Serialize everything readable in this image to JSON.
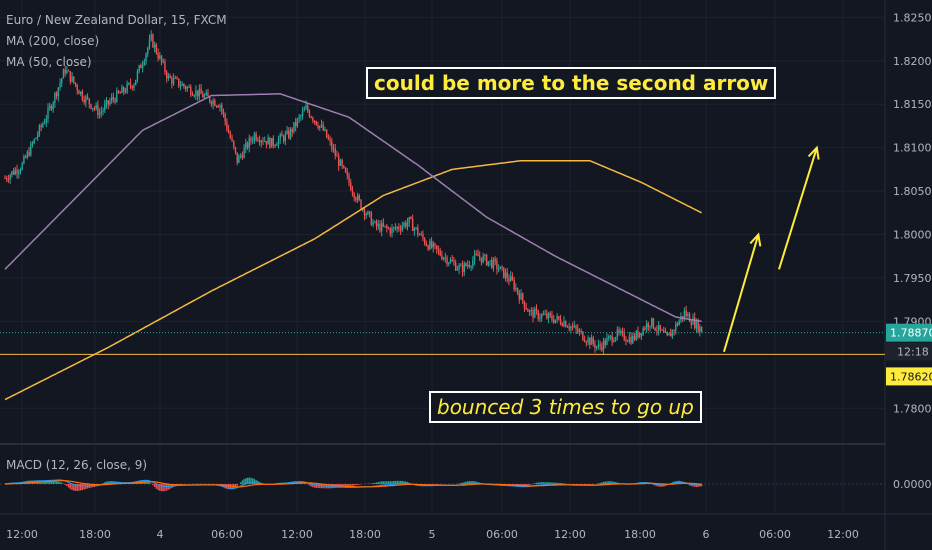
{
  "legend": {
    "symbol": "Euro / New Zealand Dollar, 15, FXCM",
    "ma200": "MA (200, close)",
    "ma50": "MA (50, close)",
    "macd": "MACD (12, 26, close, 9)"
  },
  "annotations": {
    "top": "could be more to the second arrow",
    "bottom": "bounced 3 times to go up"
  },
  "colors": {
    "background": "#131722",
    "grid": "#1e222d",
    "up": "#26a69a",
    "down": "#ef5350",
    "ma200": "#f5b942",
    "ma50": "#9c7fb0",
    "support": "#f5b942",
    "arrow": "#ffeb3b",
    "text": "#b2b5be",
    "current_price_label": "#26a69a",
    "support_label": "#ffeb3b",
    "macd_line": "#2196f3",
    "signal_line": "#ff6d00"
  },
  "chart_data": {
    "type": "candlestick",
    "price_axis": {
      "ticks": [
        "1.82500",
        "1.82000",
        "1.81500",
        "1.81000",
        "1.80500",
        "1.80000",
        "1.79500",
        "1.79000",
        "1.78000"
      ],
      "ylim": [
        1.776,
        1.827
      ]
    },
    "time_axis": {
      "ticks": [
        "12:00",
        "18:00",
        "4",
        "06:00",
        "12:00",
        "18:00",
        "5",
        "06:00",
        "12:00",
        "18:00",
        "6",
        "06:00",
        "12:00"
      ]
    },
    "current_price": {
      "value": "1.78870",
      "countdown": "12:18"
    },
    "support_level": {
      "value": "1.78620"
    },
    "macd_axis": {
      "ticks": [
        "0.00000"
      ]
    },
    "price_path_anchors": [
      [
        0,
        1.8065
      ],
      [
        10,
        1.808
      ],
      [
        25,
        1.814
      ],
      [
        35,
        1.819
      ],
      [
        45,
        1.816
      ],
      [
        55,
        1.814
      ],
      [
        62,
        1.8155
      ],
      [
        75,
        1.8175
      ],
      [
        85,
        1.8225
      ],
      [
        95,
        1.818
      ],
      [
        105,
        1.817
      ],
      [
        115,
        1.816
      ],
      [
        125,
        1.815
      ],
      [
        135,
        1.8085
      ],
      [
        145,
        1.8115
      ],
      [
        155,
        1.8105
      ],
      [
        165,
        1.8115
      ],
      [
        175,
        1.8145
      ],
      [
        185,
        1.812
      ],
      [
        195,
        1.808
      ],
      [
        205,
        1.804
      ],
      [
        215,
        1.801
      ],
      [
        225,
        1.8005
      ],
      [
        235,
        1.8015
      ],
      [
        245,
        1.799
      ],
      [
        255,
        1.7975
      ],
      [
        265,
        1.796
      ],
      [
        275,
        1.7975
      ],
      [
        285,
        1.7965
      ],
      [
        295,
        1.7945
      ],
      [
        305,
        1.791
      ],
      [
        315,
        1.7905
      ],
      [
        325,
        1.79
      ],
      [
        335,
        1.7885
      ],
      [
        345,
        1.787
      ],
      [
        355,
        1.7885
      ],
      [
        365,
        1.788
      ],
      [
        375,
        1.79
      ],
      [
        385,
        1.788
      ],
      [
        395,
        1.791
      ],
      [
        405,
        1.789
      ]
    ],
    "ma50_anchors": [
      [
        0,
        1.796
      ],
      [
        40,
        1.804
      ],
      [
        80,
        1.812
      ],
      [
        120,
        1.816
      ],
      [
        160,
        1.8162
      ],
      [
        200,
        1.8135
      ],
      [
        240,
        1.808
      ],
      [
        280,
        1.802
      ],
      [
        320,
        1.7975
      ],
      [
        360,
        1.7935
      ],
      [
        390,
        1.7905
      ],
      [
        405,
        1.79
      ]
    ],
    "ma200_anchors": [
      [
        0,
        1.781
      ],
      [
        60,
        1.787
      ],
      [
        120,
        1.7935
      ],
      [
        180,
        1.7995
      ],
      [
        220,
        1.8045
      ],
      [
        260,
        1.8075
      ],
      [
        300,
        1.8085
      ],
      [
        340,
        1.8085
      ],
      [
        370,
        1.806
      ],
      [
        405,
        1.8025
      ]
    ],
    "projection_arrows": [
      {
        "from": [
          1.7865,
          418
        ],
        "to": [
          1.8,
          438
        ]
      },
      {
        "from": [
          1.796,
          450
        ],
        "to": [
          1.81,
          472
        ]
      }
    ]
  }
}
